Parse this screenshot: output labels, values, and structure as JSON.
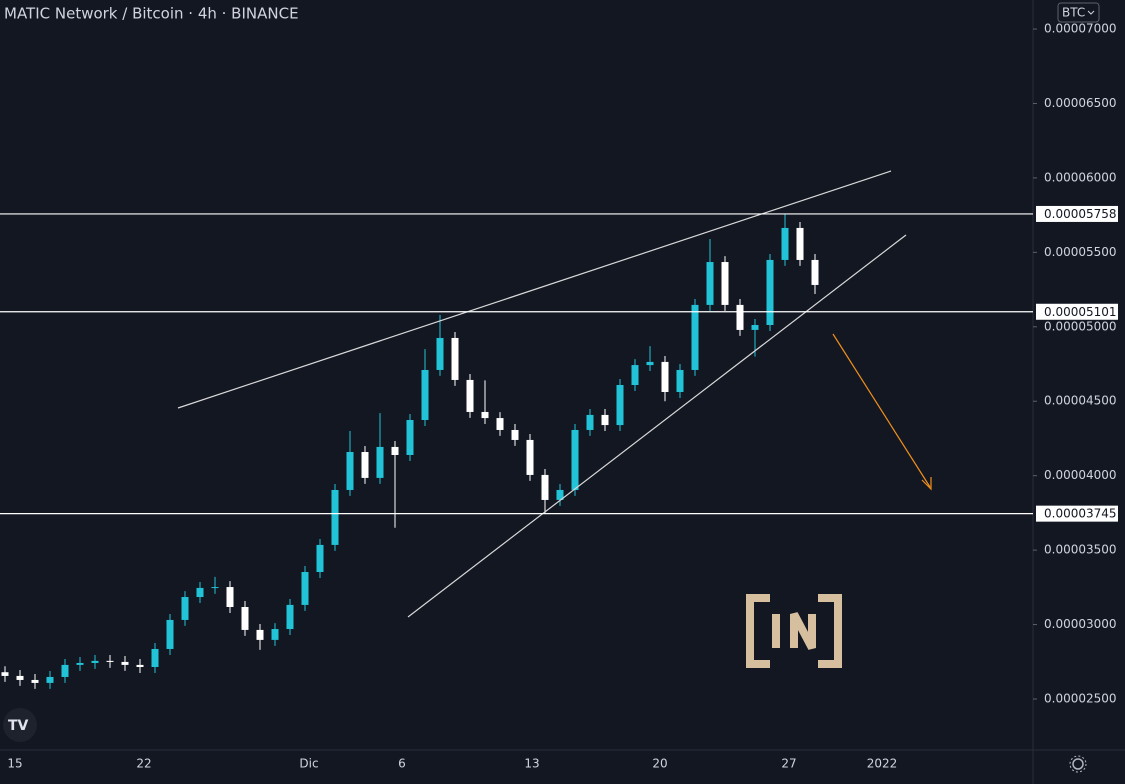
{
  "chart_data": {
    "type": "candlestick",
    "title": "MATIC Network / Bitcoin · 4h · BINANCE",
    "currency": "BTC",
    "x_labels": [
      "15",
      "22",
      "Dic",
      "6",
      "13",
      "20",
      "27",
      "2022"
    ],
    "up_color": "#22c3d6",
    "down_color": "#ffffff",
    "level_color": "#ffffff",
    "open": [
      2.68e-05,
      2.655e-05,
      2.628e-05,
      2.608e-05,
      2.648e-05,
      2.729e-05,
      2.742e-05,
      2.756e-05,
      2.749e-05,
      2.729e-05,
      2.715e-05,
      2.836e-05,
      3.031e-05,
      3.185e-05,
      3.246e-05,
      3.252e-05,
      3.118e-05,
      2.964e-05,
      2.897e-05,
      2.97e-05,
      3.132e-05,
      3.353e-05,
      3.535e-05,
      3.904e-05,
      4.159e-05,
      3.985e-05,
      4.193e-05,
      4.139e-05,
      4.374e-05,
      4.71e-05,
      4.925e-05,
      4.643e-05,
      4.428e-05,
      4.387e-05,
      4.307e-05,
      4.24e-05,
      4.005e-05,
      3.837e-05,
      3.904e-05,
      4.307e-05,
      4.408e-05,
      4.34e-05,
      4.609e-05,
      4.743e-05,
      4.764e-05,
      4.562e-05,
      4.71e-05,
      5.147e-05,
      5.435e-05,
      5.147e-05,
      4.979e-05,
      5.012e-05,
      5.449e-05,
      5.664e-05,
      5.449e-05
    ],
    "high": [
      2.72e-05,
      2.695e-05,
      2.668e-05,
      2.688e-05,
      2.769e-05,
      2.782e-05,
      2.796e-05,
      2.796e-05,
      2.789e-05,
      2.769e-05,
      2.876e-05,
      3.071e-05,
      3.225e-05,
      3.286e-05,
      3.32e-05,
      3.292e-05,
      3.158e-05,
      3.004e-05,
      3.01e-05,
      3.172e-05,
      3.393e-05,
      3.575e-05,
      3.944e-05,
      4.3e-05,
      4.199e-05,
      4.42e-05,
      4.233e-05,
      4.414e-05,
      4.85e-05,
      5.08e-05,
      4.965e-05,
      4.683e-05,
      4.64e-05,
      4.427e-05,
      4.347e-05,
      4.28e-05,
      4.045e-05,
      3.944e-05,
      4.347e-05,
      4.448e-05,
      4.448e-05,
      4.649e-05,
      4.783e-05,
      4.87e-05,
      4.804e-05,
      4.75e-05,
      5.187e-05,
      5.59e-05,
      5.475e-05,
      5.187e-05,
      5.052e-05,
      5.489e-05,
      5.758e-05,
      5.704e-05,
      5.489e-05
    ],
    "low": [
      2.615e-05,
      2.588e-05,
      2.568e-05,
      2.568e-05,
      2.608e-05,
      2.689e-05,
      2.702e-05,
      2.709e-05,
      2.689e-05,
      2.675e-05,
      2.675e-05,
      2.796e-05,
      2.991e-05,
      3.145e-05,
      3.206e-05,
      3.078e-05,
      2.924e-05,
      2.83e-05,
      2.857e-05,
      2.93e-05,
      3.092e-05,
      3.313e-05,
      3.495e-05,
      3.864e-05,
      3.945e-05,
      3.945e-05,
      3.65e-05,
      4.099e-05,
      4.334e-05,
      4.67e-05,
      4.603e-05,
      4.388e-05,
      4.347e-05,
      4.267e-05,
      4.2e-05,
      3.965e-05,
      3.745e-05,
      3.797e-05,
      3.864e-05,
      4.267e-05,
      4.3e-05,
      4.3e-05,
      4.569e-05,
      4.703e-05,
      4.5e-05,
      4.522e-05,
      4.67e-05,
      5.107e-05,
      5.107e-05,
      4.939e-05,
      4.8e-05,
      4.972e-05,
      5.409e-05,
      5.409e-05,
      5.22e-05
    ],
    "close": [
      2.655e-05,
      2.628e-05,
      2.608e-05,
      2.648e-05,
      2.729e-05,
      2.742e-05,
      2.756e-05,
      2.749e-05,
      2.729e-05,
      2.715e-05,
      2.836e-05,
      3.031e-05,
      3.185e-05,
      3.246e-05,
      3.252e-05,
      3.118e-05,
      2.964e-05,
      2.897e-05,
      2.97e-05,
      3.132e-05,
      3.353e-05,
      3.535e-05,
      3.904e-05,
      4.159e-05,
      3.985e-05,
      4.193e-05,
      4.139e-05,
      4.374e-05,
      4.71e-05,
      4.925e-05,
      4.643e-05,
      4.428e-05,
      4.387e-05,
      4.307e-05,
      4.24e-05,
      4.005e-05,
      3.837e-05,
      3.904e-05,
      4.307e-05,
      4.408e-05,
      4.34e-05,
      4.609e-05,
      4.743e-05,
      4.764e-05,
      4.562e-05,
      4.71e-05,
      5.147e-05,
      5.435e-05,
      5.147e-05,
      4.979e-05,
      5.012e-05,
      5.449e-05,
      5.664e-05,
      5.449e-05,
      5.281e-05
    ],
    "ylim": [
      2.1575e-05,
      7.195e-05
    ],
    "yticks": [
      {
        "value": 2.5e-05,
        "label": "0.00002500"
      },
      {
        "value": 3e-05,
        "label": "0.00003000"
      },
      {
        "value": 3.5e-05,
        "label": "0.00003500"
      },
      {
        "value": 4e-05,
        "label": "0.00004000"
      },
      {
        "value": 4.5e-05,
        "label": "0.00004500"
      },
      {
        "value": 5e-05,
        "label": "0.00005000"
      },
      {
        "value": 5.5e-05,
        "label": "0.00005500"
      },
      {
        "value": 6e-05,
        "label": "0.00006000"
      },
      {
        "value": 6.5e-05,
        "label": "0.00006500"
      },
      {
        "value": 7e-05,
        "label": "0.00007000"
      }
    ],
    "levels": [
      5.758e-05,
      5.101e-05,
      3.745e-05
    ]
  }
}
